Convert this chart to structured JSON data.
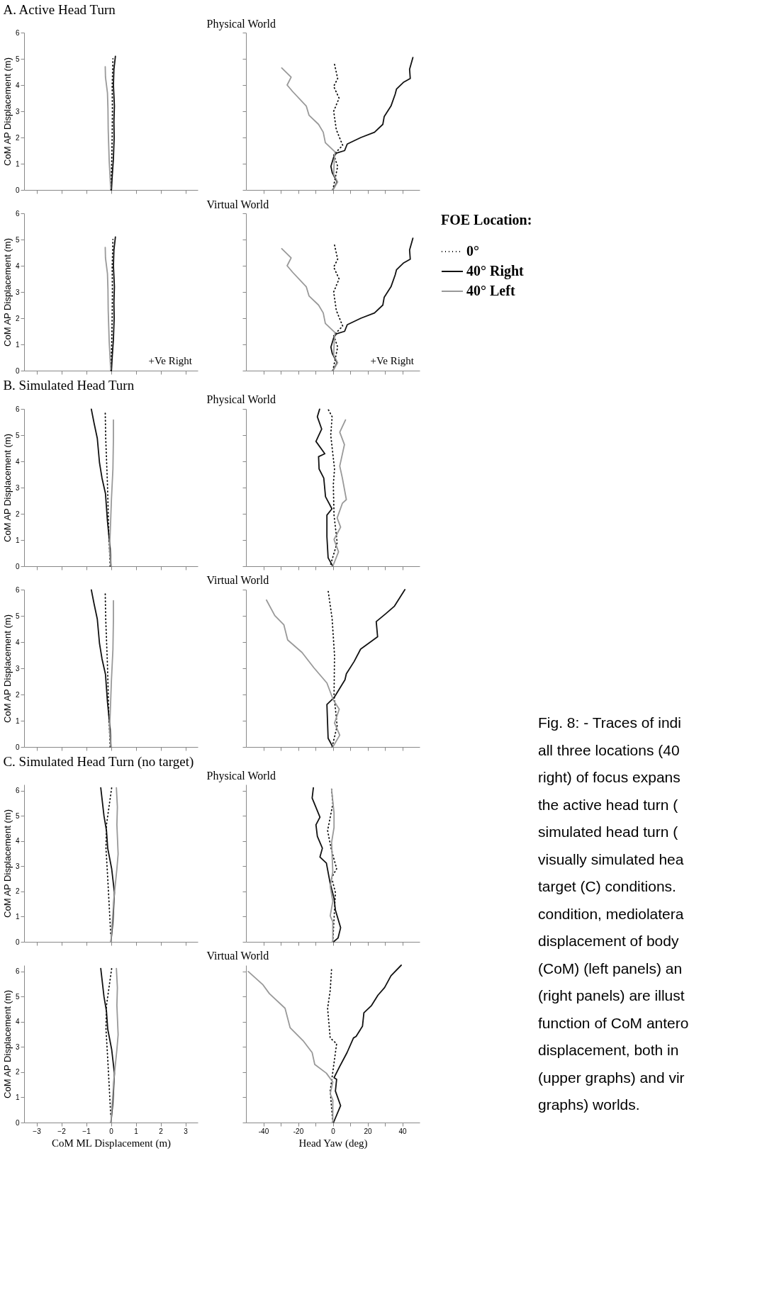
{
  "chart_data": [
    {
      "type": "line",
      "title": "A. Active Head Turn",
      "ylabel": "CoM AP Displacement (m)",
      "xlim": [
        -3.5,
        3.5
      ],
      "xticks": [
        -3,
        -2,
        -1,
        0,
        1,
        2,
        3
      ],
      "ylim": [
        0,
        6
      ],
      "yticks": [
        0,
        1,
        2,
        3,
        4,
        5,
        6
      ],
      "tick_labels": "y",
      "series": [
        {
          "color": "#111111",
          "line_style": "dotted",
          "x": [
            0.0,
            0.03,
            0.05,
            0.06,
            0.05,
            0.07,
            0.08
          ],
          "values": [
            0,
            1,
            2,
            3,
            4,
            4.6,
            5.0
          ]
        },
        {
          "color": "#111111",
          "line_style": "solid",
          "x": [
            0.02,
            0.05,
            0.1,
            0.13,
            0.12,
            0.14,
            0.1,
            0.12,
            0.18
          ],
          "values": [
            0,
            0.5,
            1.2,
            2,
            2.6,
            3.2,
            4,
            4.6,
            5.1
          ]
        },
        {
          "color": "#999999",
          "line_style": "solid",
          "x": [
            -0.01,
            -0.07,
            -0.11,
            -0.12,
            -0.14,
            -0.22,
            -0.23
          ],
          "values": [
            0.05,
            1.1,
            2.3,
            3.1,
            3.7,
            4.3,
            4.7
          ]
        }
      ]
    },
    {
      "type": "line",
      "title": "Physical World",
      "xlim": [
        -50,
        50
      ],
      "xticks": [
        -40,
        -30,
        -20,
        -10,
        0,
        10,
        20,
        30,
        40
      ],
      "ylim": [
        0,
        6
      ],
      "yticks": [
        0,
        1,
        2,
        3,
        4,
        5,
        6
      ],
      "tick_labels": false,
      "series": [
        {
          "color": "#111111",
          "line_style": "dotted",
          "x": [
            0,
            2.8,
            0.5,
            5.7,
            2,
            0.5,
            3.6,
            0.5,
            2.8,
            0.8
          ],
          "values": [
            0,
            0.9,
            1.35,
            1.7,
            2.3,
            3,
            3.5,
            3.95,
            4.25,
            4.85
          ]
        },
        {
          "color": "#111111",
          "line_style": "solid",
          "x": [
            0,
            2.5,
            -0.3,
            -1.1,
            0.5,
            2,
            6.8,
            8.3,
            16.2,
            24,
            28.8,
            29.6,
            33.5,
            35.9,
            36.7,
            40.6,
            44.6,
            44.2,
            46.1
          ],
          "values": [
            0,
            0.3,
            0.65,
            0.9,
            1.25,
            1.4,
            1.5,
            1.75,
            2,
            2.2,
            2.5,
            2.8,
            3.2,
            3.65,
            3.85,
            4.1,
            4.25,
            4.6,
            5.05
          ]
        },
        {
          "color": "#999999",
          "line_style": "solid",
          "x": [
            0,
            2.8,
            0.5,
            0.8,
            1.3,
            -4.3,
            -5.5,
            -8.2,
            -13.7,
            -15.3,
            -23.1,
            -26.3,
            -24,
            -29.4
          ],
          "values": [
            0,
            0.3,
            0.6,
            1.1,
            1.45,
            1.8,
            2.2,
            2.5,
            2.85,
            3.2,
            3.75,
            4,
            4.3,
            4.65
          ]
        }
      ]
    },
    {
      "type": "line",
      "ylabel": "CoM AP Displacement (m)",
      "xlim": [
        -3.5,
        3.5
      ],
      "xticks": [
        -3,
        -2,
        -1,
        0,
        1,
        2,
        3
      ],
      "ylim": [
        0,
        6
      ],
      "yticks": [
        0,
        1,
        2,
        3,
        4,
        5,
        6
      ],
      "tick_labels": "y",
      "annotations": [
        "+Ve Right"
      ],
      "series": [
        {
          "color": "#111111",
          "line_style": "dotted",
          "x": [
            0.0,
            0.03,
            0.05,
            0.06,
            0.05,
            0.07,
            0.08
          ],
          "values": [
            0,
            1,
            2,
            3,
            4,
            4.6,
            5.0
          ]
        },
        {
          "color": "#111111",
          "line_style": "solid",
          "x": [
            0.02,
            0.05,
            0.1,
            0.13,
            0.12,
            0.14,
            0.1,
            0.12,
            0.18
          ],
          "values": [
            0,
            0.5,
            1.2,
            2,
            2.6,
            3.2,
            4,
            4.6,
            5.1
          ]
        },
        {
          "color": "#999999",
          "line_style": "solid",
          "x": [
            -0.01,
            -0.07,
            -0.11,
            -0.12,
            -0.14,
            -0.22,
            -0.23
          ],
          "values": [
            0.05,
            1.1,
            2.3,
            3.1,
            3.7,
            4.3,
            4.7
          ]
        }
      ]
    },
    {
      "type": "line",
      "title": "Virtual World",
      "xlim": [
        -50,
        50
      ],
      "xticks": [
        -40,
        -30,
        -20,
        -10,
        0,
        10,
        20,
        30,
        40
      ],
      "ylim": [
        0,
        6
      ],
      "yticks": [
        0,
        1,
        2,
        3,
        4,
        5,
        6
      ],
      "tick_labels": false,
      "annotations": [
        "+Ve Right"
      ],
      "legend": "right",
      "legend_title": "FOE Location:",
      "series": [
        {
          "name": "0°",
          "color": "#111111",
          "line_style": "dotted",
          "x": [
            0,
            2.8,
            0.5,
            5.7,
            2,
            0.5,
            3.6,
            0.5,
            2.8,
            0.8
          ],
          "values": [
            0,
            0.9,
            1.35,
            1.7,
            2.3,
            3,
            3.5,
            3.95,
            4.25,
            4.85
          ]
        },
        {
          "name": "40° Right",
          "color": "#111111",
          "line_style": "solid",
          "x": [
            0,
            2.5,
            -0.3,
            -1.1,
            0.5,
            2,
            6.8,
            8.3,
            16.2,
            24,
            28.8,
            29.6,
            33.5,
            35.9,
            36.7,
            40.6,
            44.6,
            44.2,
            46.1
          ],
          "values": [
            0,
            0.3,
            0.65,
            0.9,
            1.25,
            1.4,
            1.5,
            1.75,
            2,
            2.2,
            2.5,
            2.8,
            3.2,
            3.65,
            3.85,
            4.1,
            4.25,
            4.6,
            5.05
          ]
        },
        {
          "name": "40° Left",
          "color": "#999999",
          "line_style": "solid",
          "x": [
            0,
            2.8,
            0.5,
            0.8,
            1.3,
            -4.3,
            -5.5,
            -8.2,
            -13.7,
            -15.3,
            -23.1,
            -26.3,
            -24,
            -29.4
          ],
          "values": [
            0,
            0.3,
            0.6,
            1.1,
            1.45,
            1.8,
            2.2,
            2.5,
            2.85,
            3.2,
            3.75,
            4,
            4.3,
            4.65
          ]
        }
      ]
    },
    {
      "type": "line",
      "title": "B. Simulated Head Turn",
      "ylabel": "CoM AP Displacement (m)",
      "xlim": [
        -3.5,
        3.5
      ],
      "xticks": [
        -3,
        -2,
        -1,
        0,
        1,
        2,
        3
      ],
      "ylim": [
        0,
        6
      ],
      "yticks": [
        0,
        1,
        2,
        3,
        4,
        5,
        6
      ],
      "tick_labels": "y",
      "series": [
        {
          "color": "#111111",
          "line_style": "dotted",
          "x": [
            -0.03,
            -0.09,
            -0.14,
            -0.21,
            -0.23
          ],
          "values": [
            0,
            1.37,
            3.12,
            4.88,
            5.87
          ]
        },
        {
          "color": "#111111",
          "line_style": "solid",
          "x": [
            0,
            -0.03,
            -0.14,
            -0.22,
            -0.36,
            -0.46,
            -0.55,
            -0.68,
            -0.79
          ],
          "values": [
            0,
            0.67,
            1.72,
            2.77,
            3.36,
            3.94,
            4.88,
            5.46,
            5.99
          ]
        },
        {
          "color": "#999999",
          "line_style": "solid",
          "x": [
            0,
            -0.06,
            -0.03,
            0.02,
            0.08,
            0.1,
            0.1
          ],
          "values": [
            0,
            0.67,
            1.25,
            2.54,
            3.71,
            4.88,
            5.58
          ]
        }
      ]
    },
    {
      "type": "line",
      "title": "Physical World",
      "xlim": [
        -50,
        50
      ],
      "xticks": [
        -40,
        -30,
        -20,
        -10,
        0,
        10,
        20,
        30,
        40
      ],
      "ylim": [
        0,
        6
      ],
      "yticks": [
        0,
        1,
        2,
        3,
        4,
        5,
        6
      ],
      "tick_labels": false,
      "series": [
        {
          "color": "#111111",
          "line_style": "dotted",
          "x": [
            -1.2,
            2.5,
            0.7,
            0.3,
            1,
            -1.2,
            -0.4,
            -2.7
          ],
          "values": [
            0.08,
            0.9,
            1.95,
            3.12,
            3.71,
            5,
            5.7,
            5.99
          ]
        },
        {
          "color": "#111111",
          "line_style": "solid",
          "x": [
            0,
            -2.7,
            -3.4,
            -3.4,
            -0.5,
            -4.2,
            -5.2,
            -7.9,
            -8.2,
            -4.6,
            -9.7,
            -6.4,
            -8.9,
            -7.6
          ],
          "values": [
            0,
            0.32,
            1.13,
            1.95,
            2.19,
            2.65,
            3.36,
            3.71,
            4.18,
            4.29,
            4.76,
            5.23,
            5.7,
            5.99
          ]
        },
        {
          "color": "#999999",
          "line_style": "solid",
          "x": [
            0,
            3.3,
            0.7,
            4.5,
            2.5,
            5.5,
            7.8,
            5.5,
            4,
            6.7,
            4,
            7.3
          ],
          "values": [
            0,
            0.55,
            1.02,
            1.49,
            1.84,
            2.4,
            2.54,
            3.36,
            3.82,
            4.64,
            5.11,
            5.58
          ]
        }
      ]
    },
    {
      "type": "line",
      "ylabel": "CoM AP Displacement (m)",
      "xlim": [
        -3.5,
        3.5
      ],
      "xticks": [
        -3,
        -2,
        -1,
        0,
        1,
        2,
        3
      ],
      "ylim": [
        0,
        6
      ],
      "yticks": [
        0,
        1,
        2,
        3,
        4,
        5,
        6
      ],
      "tick_labels": "y",
      "series": [
        {
          "color": "#111111",
          "line_style": "dotted",
          "x": [
            -0.03,
            -0.09,
            -0.14,
            -0.21,
            -0.23
          ],
          "values": [
            0,
            1.37,
            3.12,
            4.88,
            5.87
          ]
        },
        {
          "color": "#111111",
          "line_style": "solid",
          "x": [
            0,
            -0.03,
            -0.14,
            -0.22,
            -0.36,
            -0.46,
            -0.55,
            -0.68,
            -0.79
          ],
          "values": [
            0,
            0.67,
            1.72,
            2.77,
            3.36,
            3.94,
            4.88,
            5.46,
            5.99
          ]
        },
        {
          "color": "#999999",
          "line_style": "solid",
          "x": [
            0,
            -0.06,
            -0.03,
            0.02,
            0.08,
            0.1,
            0.1
          ],
          "values": [
            0,
            0.67,
            1.25,
            2.54,
            3.71,
            4.88,
            5.58
          ]
        }
      ]
    },
    {
      "type": "line",
      "title": "Virtual World",
      "xlim": [
        -50,
        50
      ],
      "xticks": [
        -40,
        -30,
        -20,
        -10,
        0,
        10,
        20,
        30,
        40
      ],
      "ylim": [
        0,
        6
      ],
      "yticks": [
        0,
        1,
        2,
        3,
        4,
        5,
        6
      ],
      "tick_labels": false,
      "series": [
        {
          "color": "#111111",
          "line_style": "dotted",
          "x": [
            -0.4,
            2.5,
            0.7,
            1,
            -0.4,
            -2.7
          ],
          "values": [
            0,
            0.8,
            1.97,
            3.49,
            4.9,
            5.96
          ]
        },
        {
          "color": "#111111",
          "line_style": "solid",
          "x": [
            0,
            -2.7,
            -3.4,
            0.7,
            7,
            7.8,
            12.3,
            16,
            25.8,
            25,
            30.3,
            35.5,
            41.5
          ],
          "values": [
            0,
            0.33,
            1.62,
            1.88,
            2.56,
            2.79,
            3.26,
            3.73,
            4.2,
            4.78,
            5.07,
            5.37,
            6
          ]
        },
        {
          "color": "#999999",
          "line_style": "solid",
          "x": [
            0,
            4,
            1,
            3.7,
            0.3,
            -3.4,
            -10.9,
            -17.7,
            -26,
            -28.2,
            -33.4,
            -38.2
          ],
          "values": [
            0,
            0.45,
            0.91,
            1.44,
            1.79,
            2.44,
            3.02,
            3.6,
            4.08,
            4.66,
            5.01,
            5.6
          ]
        }
      ]
    },
    {
      "type": "line",
      "title": "C. Simulated Head Turn (no target)",
      "ylabel": "CoM AP Displacement (m)",
      "xlim": [
        -3.5,
        3.5
      ],
      "xticks": [
        -3,
        -2,
        -1,
        0,
        1,
        2,
        3
      ],
      "ylim": [
        0,
        6.25
      ],
      "yticks": [
        0,
        1,
        2,
        3,
        4,
        5,
        6
      ],
      "tick_labels": "y",
      "series": [
        {
          "color": "#111111",
          "line_style": "dotted",
          "x": [
            -0.01,
            -0.13,
            -0.2,
            -0.18,
            0.03
          ],
          "values": [
            0.33,
            2.55,
            3.72,
            4.65,
            6.12
          ]
        },
        {
          "color": "#111111",
          "line_style": "solid",
          "x": [
            0,
            0.08,
            0.14,
            0.03,
            -0.13,
            -0.18,
            -0.28,
            -0.41
          ],
          "values": [
            0,
            0.8,
            1.96,
            2.9,
            3.72,
            4.42,
            5,
            6.12
          ]
        },
        {
          "color": "#999999",
          "line_style": "solid",
          "x": [
            0,
            0.12,
            0.24,
            0.29,
            0.24,
            0.26,
            0.22
          ],
          "values": [
            0,
            1.73,
            2.9,
            3.49,
            4.65,
            5.36,
            6.12
          ]
        }
      ]
    },
    {
      "type": "line",
      "title": "Physical World",
      "xlim": [
        -50,
        50
      ],
      "xticks": [
        -40,
        -30,
        -20,
        -10,
        0,
        10,
        20,
        30,
        40
      ],
      "ylim": [
        0,
        6.25
      ],
      "yticks": [
        0,
        1,
        2,
        3,
        4,
        5,
        6
      ],
      "tick_labels": false,
      "series": [
        {
          "color": "#111111",
          "line_style": "dotted",
          "x": [
            0,
            1.5,
            -0.7,
            2.2,
            -1,
            -3,
            0,
            -0.7
          ],
          "values": [
            0,
            1.96,
            2.55,
            2.9,
            3.72,
            4.42,
            5.47,
            6.06
          ]
        },
        {
          "color": "#111111",
          "line_style": "solid",
          "x": [
            0.4,
            3,
            4.5,
            1.5,
            0.7,
            -1.5,
            -3.7,
            -7.4,
            -6,
            -8.9,
            -9.7,
            -7.4,
            -11.9,
            -11.2
          ],
          "values": [
            0,
            0.15,
            0.56,
            1.26,
            1.73,
            2.32,
            3.13,
            3.37,
            3.72,
            4.19,
            4.65,
            4.95,
            5.71,
            6.12
          ]
        },
        {
          "color": "#999999",
          "line_style": "solid",
          "x": [
            0,
            0,
            -1.5,
            0,
            -1.5,
            0,
            -0.7,
            0.7,
            0.7,
            -0.7
          ],
          "values": [
            0,
            0.8,
            1.03,
            1.61,
            2.2,
            2.78,
            3.95,
            4.54,
            5.12,
            6.06
          ]
        }
      ]
    },
    {
      "type": "line",
      "ylabel": "CoM AP Displacement (m)",
      "xlabel": "CoM ML Displacement (m)",
      "xlim": [
        -3.5,
        3.5
      ],
      "xticks": [
        -3,
        -2,
        -1,
        0,
        1,
        2,
        3
      ],
      "ylim": [
        0,
        6.25
      ],
      "yticks": [
        0,
        1,
        2,
        3,
        4,
        5,
        6
      ],
      "series": [
        {
          "color": "#111111",
          "line_style": "dotted",
          "x": [
            -0.01,
            -0.13,
            -0.2,
            -0.18,
            0.03
          ],
          "values": [
            0.33,
            2.55,
            3.72,
            4.65,
            6.12
          ]
        },
        {
          "color": "#111111",
          "line_style": "solid",
          "x": [
            0,
            0.08,
            0.14,
            0.03,
            -0.13,
            -0.18,
            -0.28,
            -0.41
          ],
          "values": [
            0,
            0.8,
            1.96,
            2.9,
            3.72,
            4.42,
            5,
            6.12
          ]
        },
        {
          "color": "#999999",
          "line_style": "solid",
          "x": [
            0,
            0.12,
            0.24,
            0.29,
            0.24,
            0.26,
            0.22
          ],
          "values": [
            0,
            1.73,
            2.9,
            3.49,
            4.65,
            5.36,
            6.12
          ]
        }
      ]
    },
    {
      "type": "line",
      "title": "Virtual World",
      "xlabel": "Head Yaw (deg)",
      "xlim": [
        -50,
        50
      ],
      "xticks": [
        {
          "value": -40,
          "label": "-40"
        },
        {
          "value": -30,
          "label": null
        },
        {
          "value": -20,
          "label": "-20"
        },
        {
          "value": -10,
          "label": null
        },
        {
          "value": 0,
          "label": "0"
        },
        {
          "value": 10,
          "label": null
        },
        {
          "value": 20,
          "label": "20"
        },
        {
          "value": 30,
          "label": null
        },
        {
          "value": 40,
          "label": "40"
        }
      ],
      "ylim": [
        0,
        6.25
      ],
      "yticks": [
        0,
        1,
        2,
        3,
        4,
        5,
        6
      ],
      "tick_labels": "x",
      "series": [
        {
          "color": "#111111",
          "line_style": "dotted",
          "x": [
            0,
            -1.5,
            2.2,
            -1.5,
            -3,
            -1.5,
            -0.7
          ],
          "values": [
            0,
            1.25,
            3.13,
            3.36,
            4.54,
            5.24,
            6.12
          ]
        },
        {
          "color": "#111111",
          "line_style": "solid",
          "x": [
            0.4,
            4.5,
            1.5,
            2.2,
            0.7,
            3.7,
            8.2,
            11.9,
            13.4,
            17.1,
            17.9,
            22.3,
            26,
            29.8,
            33.5,
            39.4
          ],
          "values": [
            0,
            0.67,
            1.25,
            1.72,
            1.78,
            2.19,
            2.78,
            3.36,
            3.42,
            3.83,
            4.36,
            4.65,
            5.06,
            5.36,
            5.83,
            6.25
          ]
        },
        {
          "color": "#999999",
          "line_style": "solid",
          "x": [
            0,
            0,
            -1.5,
            0,
            -3.7,
            -10.4,
            -11.9,
            -17.1,
            -24.6,
            -27.5,
            -36.5,
            -40.2,
            -48.7
          ],
          "values": [
            0,
            0.9,
            1.14,
            1.61,
            1.96,
            2.31,
            2.78,
            3.25,
            3.77,
            4.54,
            5.12,
            5.47,
            6
          ]
        }
      ]
    },
    {
      "type": "other",
      "annotations": [
        "Fig. 8: - Traces of indi",
        "all three locations (40",
        "right) of focus expans",
        "the active head turn (",
        "simulated head turn (",
        "visually simulated hea",
        "target (C) conditions.",
        "condition, mediolatera",
        "displacement of body",
        "(CoM) (left panels) an",
        "(right panels) are illust",
        "function of CoM antero",
        "displacement, both in",
        "(upper graphs) and vir",
        "graphs) worlds."
      ]
    }
  ]
}
